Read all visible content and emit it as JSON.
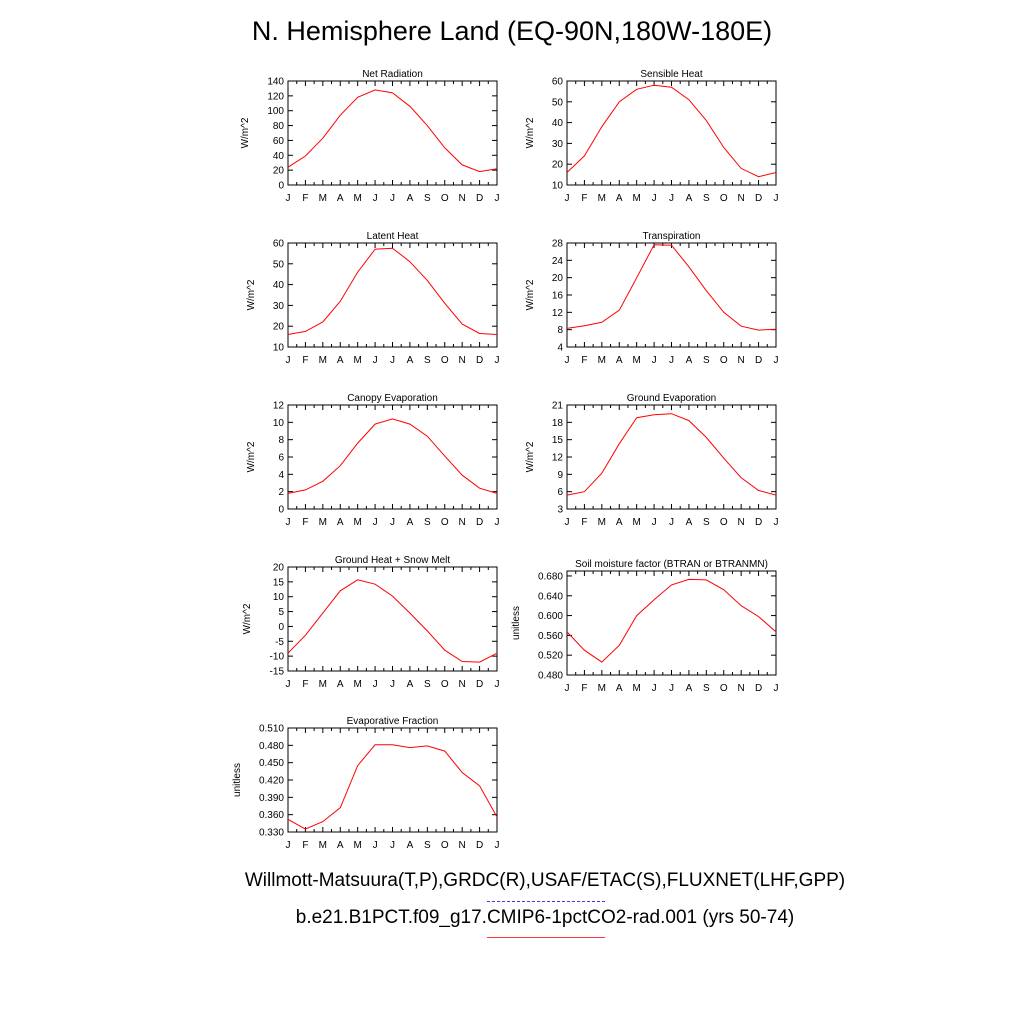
{
  "title": "N. Hemisphere Land (EQ-90N,180W-180E)",
  "footer": {
    "line1": "Willmott-Matsuura(T,P),GRDC(R),USAF/ETAC(S),FLUXNET(LHF,GPP)",
    "line2": "b.e21.B1PCT.f09_g17.CMIP6-1pctCO2-rad.001 (yrs 50-74)",
    "obs_line_color": "#3a3af0",
    "model_line_color": "#ff3a3a"
  },
  "chart_data": [
    {
      "type": "line",
      "title": "Net Radiation",
      "ylabel": "W/m^2",
      "x": [
        "J",
        "F",
        "M",
        "A",
        "M",
        "J",
        "J",
        "A",
        "S",
        "O",
        "N",
        "D",
        "J"
      ],
      "ylim": [
        0,
        140
      ],
      "yticks": [
        "0",
        "20",
        "40",
        "60",
        "80",
        "100",
        "120",
        "140"
      ],
      "series": [
        {
          "color": "#ff0000",
          "values": [
            24,
            39,
            63,
            94,
            118,
            128,
            124,
            106,
            80,
            50,
            27,
            18,
            22
          ]
        }
      ]
    },
    {
      "type": "line",
      "title": "Sensible Heat",
      "ylabel": "W/m^2",
      "x": [
        "J",
        "F",
        "M",
        "A",
        "M",
        "J",
        "J",
        "A",
        "S",
        "O",
        "N",
        "D",
        "J"
      ],
      "ylim": [
        10,
        60
      ],
      "yticks": [
        "10",
        "20",
        "30",
        "40",
        "50",
        "60"
      ],
      "series": [
        {
          "color": "#ff0000",
          "values": [
            16,
            24,
            38,
            50,
            56,
            58,
            57,
            51,
            41,
            28,
            18,
            14,
            16
          ]
        }
      ]
    },
    {
      "type": "line",
      "title": "Latent Heat",
      "ylabel": "W/m^2",
      "x": [
        "J",
        "F",
        "M",
        "A",
        "M",
        "J",
        "J",
        "A",
        "S",
        "O",
        "N",
        "D",
        "J"
      ],
      "ylim": [
        10,
        60
      ],
      "yticks": [
        "10",
        "20",
        "30",
        "40",
        "50",
        "60"
      ],
      "series": [
        {
          "color": "#ff0000",
          "values": [
            16,
            17.5,
            22,
            32,
            46,
            57,
            57.5,
            51,
            42,
            31,
            21,
            16.5,
            16
          ]
        }
      ]
    },
    {
      "type": "line",
      "title": "Transpiration",
      "ylabel": "W/m^2",
      "x": [
        "J",
        "F",
        "M",
        "A",
        "M",
        "J",
        "J",
        "A",
        "S",
        "O",
        "N",
        "D",
        "J"
      ],
      "ylim": [
        4,
        28
      ],
      "yticks": [
        "4",
        "8",
        "12",
        "16",
        "20",
        "24",
        "28"
      ],
      "series": [
        {
          "color": "#ff0000",
          "values": [
            8.3,
            8.9,
            9.7,
            12.5,
            20,
            27.6,
            27.5,
            22.5,
            17,
            12,
            8.8,
            7.9,
            8.1
          ]
        }
      ]
    },
    {
      "type": "line",
      "title": "Canopy Evaporation",
      "ylabel": "W/m^2",
      "x": [
        "J",
        "F",
        "M",
        "A",
        "M",
        "J",
        "J",
        "A",
        "S",
        "O",
        "N",
        "D",
        "J"
      ],
      "ylim": [
        0,
        12
      ],
      "yticks": [
        "0",
        "2",
        "4",
        "6",
        "8",
        "10",
        "12"
      ],
      "series": [
        {
          "color": "#ff0000",
          "values": [
            1.8,
            2.2,
            3.2,
            5,
            7.6,
            9.8,
            10.4,
            9.8,
            8.4,
            6.1,
            3.9,
            2.4,
            1.8
          ]
        }
      ]
    },
    {
      "type": "line",
      "title": "Ground Evaporation",
      "ylabel": "W/m^2",
      "x": [
        "J",
        "F",
        "M",
        "A",
        "M",
        "J",
        "J",
        "A",
        "S",
        "O",
        "N",
        "D",
        "J"
      ],
      "ylim": [
        3,
        21
      ],
      "yticks": [
        "3",
        "6",
        "9",
        "12",
        "15",
        "18",
        "21"
      ],
      "series": [
        {
          "color": "#ff0000",
          "values": [
            5.4,
            6,
            9.2,
            14.3,
            18.8,
            19.3,
            19.5,
            18.3,
            15.4,
            11.8,
            8.4,
            6.2,
            5.4
          ]
        }
      ]
    },
    {
      "type": "line",
      "title": "Ground Heat + Snow Melt",
      "ylabel": "W/m^2",
      "x": [
        "J",
        "F",
        "M",
        "A",
        "M",
        "J",
        "J",
        "A",
        "S",
        "O",
        "N",
        "D",
        "J"
      ],
      "ylim": [
        -15,
        20
      ],
      "yticks": [
        "-15",
        "-10",
        "-5",
        "0",
        "5",
        "10",
        "15",
        "20"
      ],
      "series": [
        {
          "color": "#ff0000",
          "values": [
            -9,
            -3,
            4.5,
            12,
            15.7,
            14.2,
            10.2,
            4.5,
            -1.5,
            -8,
            -11.8,
            -12,
            -9
          ]
        }
      ]
    },
    {
      "type": "line",
      "title": "Soil moisture factor (BTRAN or BTRANMN)",
      "ylabel": "unitless",
      "x": [
        "J",
        "F",
        "M",
        "A",
        "M",
        "J",
        "J",
        "A",
        "S",
        "O",
        "N",
        "D",
        "J"
      ],
      "ylim": [
        0.48,
        0.69
      ],
      "yticks": [
        "0.480",
        "0.520",
        "0.560",
        "0.600",
        "0.640",
        "0.680"
      ],
      "series": [
        {
          "color": "#ff0000",
          "values": [
            0.567,
            0.53,
            0.506,
            0.54,
            0.6,
            0.632,
            0.662,
            0.673,
            0.672,
            0.652,
            0.62,
            0.598,
            0.567
          ]
        }
      ]
    },
    {
      "type": "line",
      "title": "Evaporative Fraction",
      "ylabel": "unitless",
      "x": [
        "J",
        "F",
        "M",
        "A",
        "M",
        "J",
        "J",
        "A",
        "S",
        "O",
        "N",
        "D",
        "J"
      ],
      "ylim": [
        0.33,
        0.51
      ],
      "yticks": [
        "0.330",
        "0.360",
        "0.390",
        "0.420",
        "0.450",
        "0.480",
        "0.510"
      ],
      "series": [
        {
          "color": "#ff0000",
          "values": [
            0.352,
            0.335,
            0.348,
            0.372,
            0.445,
            0.481,
            0.481,
            0.476,
            0.479,
            0.47,
            0.433,
            0.41,
            0.356
          ]
        }
      ]
    }
  ]
}
